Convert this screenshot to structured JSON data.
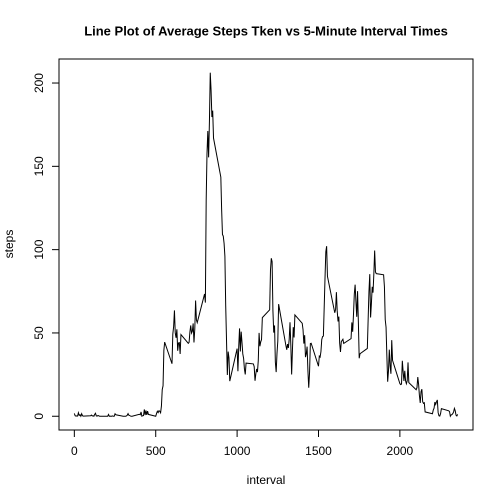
{
  "chart_data": {
    "type": "line",
    "title": "Line Plot of Average Steps Tken vs 5-Minute Interval Times",
    "xlabel": "interval",
    "ylabel": "steps",
    "color": "#000000",
    "xlim": [
      -94.2,
      2449.2
    ],
    "ylim": [
      -8.25,
      214.42
    ],
    "xticks": [
      0,
      500,
      1000,
      1500,
      2000
    ],
    "yticks": [
      0,
      50,
      100,
      150,
      200
    ],
    "x": [
      0,
      5,
      10,
      15,
      20,
      25,
      30,
      35,
      40,
      45,
      50,
      55,
      100,
      105,
      110,
      115,
      120,
      125,
      130,
      135,
      140,
      145,
      150,
      155,
      200,
      205,
      210,
      215,
      220,
      225,
      230,
      235,
      240,
      245,
      250,
      255,
      300,
      305,
      310,
      315,
      320,
      325,
      330,
      335,
      340,
      345,
      350,
      355,
      400,
      405,
      410,
      415,
      420,
      425,
      430,
      435,
      440,
      445,
      450,
      455,
      500,
      505,
      510,
      515,
      520,
      525,
      530,
      535,
      540,
      545,
      550,
      555,
      600,
      605,
      610,
      615,
      620,
      625,
      630,
      635,
      640,
      645,
      650,
      655,
      700,
      705,
      710,
      715,
      720,
      725,
      730,
      735,
      740,
      745,
      750,
      755,
      800,
      805,
      810,
      815,
      820,
      825,
      830,
      835,
      840,
      845,
      850,
      855,
      900,
      905,
      910,
      915,
      920,
      925,
      930,
      935,
      940,
      945,
      950,
      955,
      1000,
      1005,
      1010,
      1015,
      1020,
      1025,
      1030,
      1035,
      1040,
      1045,
      1050,
      1055,
      1100,
      1105,
      1110,
      1115,
      1120,
      1125,
      1130,
      1135,
      1140,
      1145,
      1150,
      1155,
      1200,
      1205,
      1210,
      1215,
      1220,
      1225,
      1230,
      1235,
      1240,
      1245,
      1250,
      1255,
      1300,
      1305,
      1310,
      1315,
      1320,
      1325,
      1330,
      1335,
      1340,
      1345,
      1350,
      1355,
      1400,
      1405,
      1410,
      1415,
      1420,
      1425,
      1430,
      1435,
      1440,
      1445,
      1450,
      1455,
      1500,
      1505,
      1510,
      1515,
      1520,
      1525,
      1530,
      1535,
      1540,
      1545,
      1550,
      1555,
      1600,
      1605,
      1610,
      1615,
      1620,
      1625,
      1630,
      1635,
      1640,
      1645,
      1650,
      1655,
      1700,
      1705,
      1710,
      1715,
      1720,
      1725,
      1730,
      1735,
      1740,
      1745,
      1750,
      1755,
      1800,
      1805,
      1810,
      1815,
      1820,
      1825,
      1830,
      1835,
      1840,
      1845,
      1850,
      1855,
      1900,
      1905,
      1910,
      1915,
      1920,
      1925,
      1930,
      1935,
      1940,
      1945,
      1950,
      1955,
      2000,
      2005,
      2010,
      2015,
      2020,
      2025,
      2030,
      2035,
      2040,
      2045,
      2050,
      2055,
      2100,
      2105,
      2110,
      2115,
      2120,
      2125,
      2130,
      2135,
      2140,
      2145,
      2150,
      2155,
      2200,
      2205,
      2210,
      2215,
      2220,
      2225,
      2230,
      2235,
      2240,
      2245,
      2250,
      2255,
      2300,
      2305,
      2310,
      2315,
      2320,
      2325,
      2330,
      2335,
      2340,
      2345,
      2350,
      2355
    ],
    "values": [
      1.7,
      0.3,
      0.1,
      0.2,
      0.1,
      2.1,
      0.5,
      0.9,
      0,
      1.5,
      0.3,
      0.1,
      0.3,
      0.7,
      0.2,
      0.3,
      0,
      1.1,
      1.8,
      0.2,
      0.1,
      0.4,
      0.3,
      0,
      0,
      0,
      1.1,
      0,
      0,
      0.1,
      0,
      0.2,
      0,
      0,
      1.5,
      0.9,
      0,
      0,
      0,
      0,
      0.2,
      0.6,
      1.6,
      0.6,
      0.5,
      0.1,
      0,
      0,
      1.2,
      0.9,
      2.6,
      0,
      0.3,
      0.4,
      4.1,
      0.7,
      3.5,
      0.8,
      3.1,
      1.1,
      0,
      1.6,
      3.0,
      2.2,
      3.3,
      3.0,
      2.1,
      6.1,
      16.0,
      18.3,
      39.5,
      44.5,
      31.5,
      49.3,
      53.8,
      63.5,
      50.0,
      47.1,
      52.2,
      39.3,
      44.0,
      44.2,
      37.4,
      49.0,
      43.8,
      44.4,
      50.5,
      54.5,
      49.9,
      51.0,
      55.7,
      44.3,
      52.3,
      69.5,
      57.8,
      56.2,
      73.4,
      68.2,
      129.4,
      157.5,
      171.2,
      155.4,
      177.3,
      206.2,
      195.9,
      179.6,
      183.4,
      167.0,
      143.5,
      124.0,
      109.1,
      108.1,
      103.7,
      96.0,
      66.2,
      45.2,
      24.8,
      38.8,
      35.0,
      21.1,
      40.6,
      27,
      42,
      52.7,
      38.9,
      50.8,
      44.3,
      37.4,
      34.7,
      28.3,
      25.1,
      31.9,
      31.4,
      29.7,
      21.3,
      25.5,
      28.4,
      26.5,
      33.4,
      50.0,
      42.0,
      44.6,
      46.0,
      59.2,
      63.9,
      87.7,
      94.8,
      92.8,
      63.4,
      50.2,
      54.5,
      32.4,
      26.5,
      37.7,
      45.1,
      67.3,
      42.3,
      39.9,
      43.3,
      41.0,
      46.2,
      56.4,
      42.8,
      25.1,
      40.0,
      53.5,
      47.3,
      60.8,
      55.8,
      52.0,
      43.6,
      48.7,
      35.5,
      37.5,
      41.8,
      27.5,
      17.1,
      26.1,
      43.6,
      43.8,
      30.0,
      36.1,
      35.5,
      38.8,
      46.0,
      47.8,
      48.1,
      65.3,
      82.9,
      98.7,
      102.1,
      84.0,
      62.1,
      64.1,
      74.5,
      63.2,
      56.9,
      59.8,
      43.9,
      38.6,
      44.7,
      45.5,
      46.2,
      43.7,
      46.6,
      56.3,
      50.7,
      61.2,
      73.4,
      79.0,
      68.9,
      59.7,
      75.1,
      56.5,
      34.8,
      37.5,
      40.7,
      58.0,
      74.7,
      85.3,
      59.3,
      67.8,
      77.7,
      74.2,
      85.3,
      99.5,
      86.6,
      85.6,
      84.9,
      77.8,
      58.0,
      53.4,
      36.3,
      20.7,
      27.4,
      40.0,
      30.2,
      25.5,
      45.7,
      33.5,
      19.6,
      19.0,
      19.3,
      33.3,
      26.8,
      21.2,
      27.3,
      21.3,
      19.5,
      21.3,
      32.3,
      20.2,
      15.9,
      17.2,
      23.5,
      19.2,
      12.5,
      8.0,
      14.7,
      16.3,
      8.7,
      7.8,
      8.1,
      2.6,
      1.5,
      3.7,
      4.8,
      8.5,
      7.1,
      8.7,
      9.8,
      2.2,
      0.3,
      0.1,
      1.6,
      4.6,
      3.3,
      2.8,
      0,
      0.8,
      1.0,
      1.6,
      2.6,
      4.7,
      3.3,
      0.6,
      0.2,
      1.1
    ]
  }
}
